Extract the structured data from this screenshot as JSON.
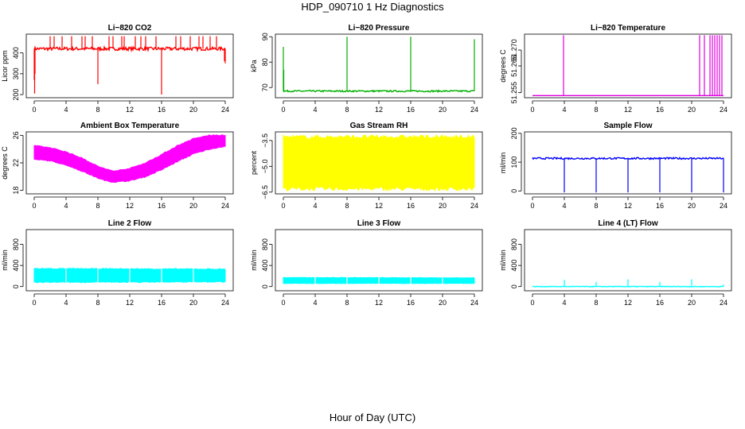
{
  "title": "HDP_090710  1 Hz Diagnostics",
  "xlabel": "Hour of Day (UTC)",
  "colors": {
    "red": "#ff0000",
    "green": "#00b000",
    "magenta": "#ff00ff",
    "yellow": "#ffff00",
    "blue": "#0000ff",
    "cyan": "#00ffff"
  },
  "chart_data": [
    {
      "type": "line",
      "title": "Li−820 CO2",
      "ylabel": "Licor ppm",
      "color": "#ff0000",
      "xlim": [
        0,
        24
      ],
      "ylim": [
        185,
        490
      ],
      "xticks": [
        "0",
        "4",
        "8",
        "12",
        "16",
        "20",
        "24"
      ],
      "yticks": [
        "200",
        "300",
        "400"
      ],
      "series": [
        {
          "baseline": 420,
          "noise": 8,
          "x": [
            0,
            0.05,
            0.1,
            0.2,
            2,
            2.5,
            3.5,
            4.7,
            6,
            6.4,
            7.3,
            8,
            8.05,
            9.4,
            9.9,
            11,
            11.3,
            12.7,
            13.4,
            14,
            15.3,
            16,
            16.1,
            17.8,
            18.4,
            19.6,
            20.7,
            21.2,
            22.1,
            22.9,
            23.9,
            24
          ],
          "y": [
            270,
            205,
            300,
            420,
            480,
            480,
            480,
            480,
            480,
            480,
            480,
            250,
            420,
            480,
            480,
            480,
            480,
            480,
            480,
            480,
            480,
            200,
            420,
            480,
            480,
            480,
            480,
            480,
            480,
            480,
            360,
            350
          ]
        }
      ]
    },
    {
      "type": "line",
      "title": "Li−820 Pressure",
      "ylabel": "kPa",
      "color": "#00b000",
      "xlim": [
        0,
        24
      ],
      "ylim": [
        66,
        91
      ],
      "xticks": [
        "0",
        "4",
        "8",
        "12",
        "16",
        "20",
        "24"
      ],
      "yticks": [
        "70",
        "80",
        "90"
      ],
      "series": [
        {
          "baseline": 68.6,
          "noise": 0.3,
          "x": [
            0,
            0.05,
            0.2,
            8,
            16,
            24
          ],
          "y": [
            86,
            77,
            68.6,
            90,
            90,
            89
          ]
        }
      ]
    },
    {
      "type": "line",
      "title": "Li−820 Temperature",
      "ylabel": "degrees C",
      "color": "#e000e0",
      "xlim": [
        0,
        24
      ],
      "ylim": [
        51.2475,
        51.2775
      ],
      "xticks": [
        "0",
        "4",
        "8",
        "12",
        "16",
        "20",
        "24"
      ],
      "yticks": [
        "51.255",
        "51.265",
        "51.270"
      ],
      "series": [
        {
          "baseline": 51.2485,
          "noise": 0,
          "x": [
            3.9,
            21,
            21.6,
            22.3,
            22.6,
            22.9,
            23.2,
            23.5,
            23.8
          ],
          "y": [
            51.277,
            51.277,
            51.277,
            51.277,
            51.277,
            51.277,
            51.277,
            51.277,
            51.277
          ]
        }
      ]
    },
    {
      "type": "area",
      "title": "Ambient Box Temperature",
      "ylabel": "degrees C",
      "color": "#ff00ff",
      "xlim": [
        0,
        24
      ],
      "ylim": [
        17.5,
        26.5
      ],
      "xticks": [
        "0",
        "4",
        "8",
        "12",
        "16",
        "20",
        "24"
      ],
      "yticks": [
        "18",
        "22",
        "26"
      ],
      "series": [
        {
          "x": [
            0,
            2,
            4,
            6,
            8,
            9,
            10,
            12,
            14,
            16,
            18,
            20,
            22,
            23,
            24
          ],
          "upper": [
            24.5,
            24.2,
            23.6,
            22.7,
            21.5,
            21.1,
            20.8,
            21.2,
            22,
            23.2,
            24.5,
            25.5,
            26,
            26,
            26
          ],
          "lower": [
            22.5,
            22.3,
            21.7,
            20.8,
            19.8,
            19.4,
            19.2,
            19.4,
            20,
            21,
            22.2,
            23.3,
            24,
            24.2,
            24.4
          ]
        }
      ]
    },
    {
      "type": "area",
      "title": "Gas Stream RH",
      "ylabel": "percent",
      "color": "#ffff00",
      "xlim": [
        0,
        24
      ],
      "ylim": [
        -6.6,
        -3.0
      ],
      "xticks": [
        "0",
        "4",
        "8",
        "12",
        "16",
        "20",
        "24"
      ],
      "yticks": [
        "−6.5",
        "−5.0",
        "−3.5"
      ],
      "series": [
        {
          "x": [
            0,
            24
          ],
          "upper": [
            -3.3,
            -3.3
          ],
          "lower": [
            -6.3,
            -6.3
          ]
        }
      ]
    },
    {
      "type": "line",
      "title": "Sample Flow",
      "ylabel": "ml/min",
      "color": "#0000ff",
      "xlim": [
        0,
        24
      ],
      "ylim": [
        -10,
        205
      ],
      "xticks": [
        "0",
        "4",
        "8",
        "12",
        "16",
        "20",
        "24"
      ],
      "yticks": [
        "0",
        "100",
        "200"
      ],
      "series": [
        {
          "baseline": 113,
          "noise": 3,
          "x": [
            4,
            8,
            12,
            16,
            20,
            24
          ],
          "y": [
            -5,
            -5,
            -5,
            -5,
            -5,
            -5
          ]
        }
      ]
    },
    {
      "type": "area",
      "title": "Line 2 Flow",
      "ylabel": "ml/min",
      "color": "#00ffff",
      "xlim": [
        0,
        24
      ],
      "ylim": [
        -80,
        1080
      ],
      "xticks": [
        "0",
        "4",
        "8",
        "12",
        "16",
        "20",
        "24"
      ],
      "yticks": [
        "0",
        "400",
        "800"
      ],
      "series": [
        {
          "x": [
            0,
            24
          ],
          "upper": [
            340,
            330
          ],
          "lower": [
            80,
            90
          ],
          "gaps": [
            4,
            8,
            12,
            16,
            20
          ]
        }
      ]
    },
    {
      "type": "area",
      "title": "Line 3 Flow",
      "ylabel": "ml/min",
      "color": "#00ffff",
      "xlim": [
        0,
        24
      ],
      "ylim": [
        -80,
        1080
      ],
      "xticks": [
        "0",
        "4",
        "8",
        "12",
        "16",
        "20",
        "24"
      ],
      "yticks": [
        "0",
        "400",
        "800"
      ],
      "series": [
        {
          "x": [
            0,
            24
          ],
          "upper": [
            170,
            165
          ],
          "lower": [
            60,
            60
          ],
          "gaps": [
            4,
            8,
            12,
            16,
            20
          ]
        }
      ]
    },
    {
      "type": "line",
      "title": "Line 4 (LT) Flow",
      "ylabel": "ml/min",
      "color": "#00ffff",
      "xlim": [
        0,
        24
      ],
      "ylim": [
        -80,
        1080
      ],
      "xticks": [
        "0",
        "4",
        "8",
        "12",
        "16",
        "20",
        "24"
      ],
      "yticks": [
        "0",
        "400",
        "800"
      ],
      "series": [
        {
          "baseline": 0,
          "noise": 6,
          "x": [
            4,
            8,
            12,
            16,
            20,
            24
          ],
          "y": [
            130,
            90,
            140,
            90,
            140,
            40
          ]
        }
      ]
    }
  ]
}
